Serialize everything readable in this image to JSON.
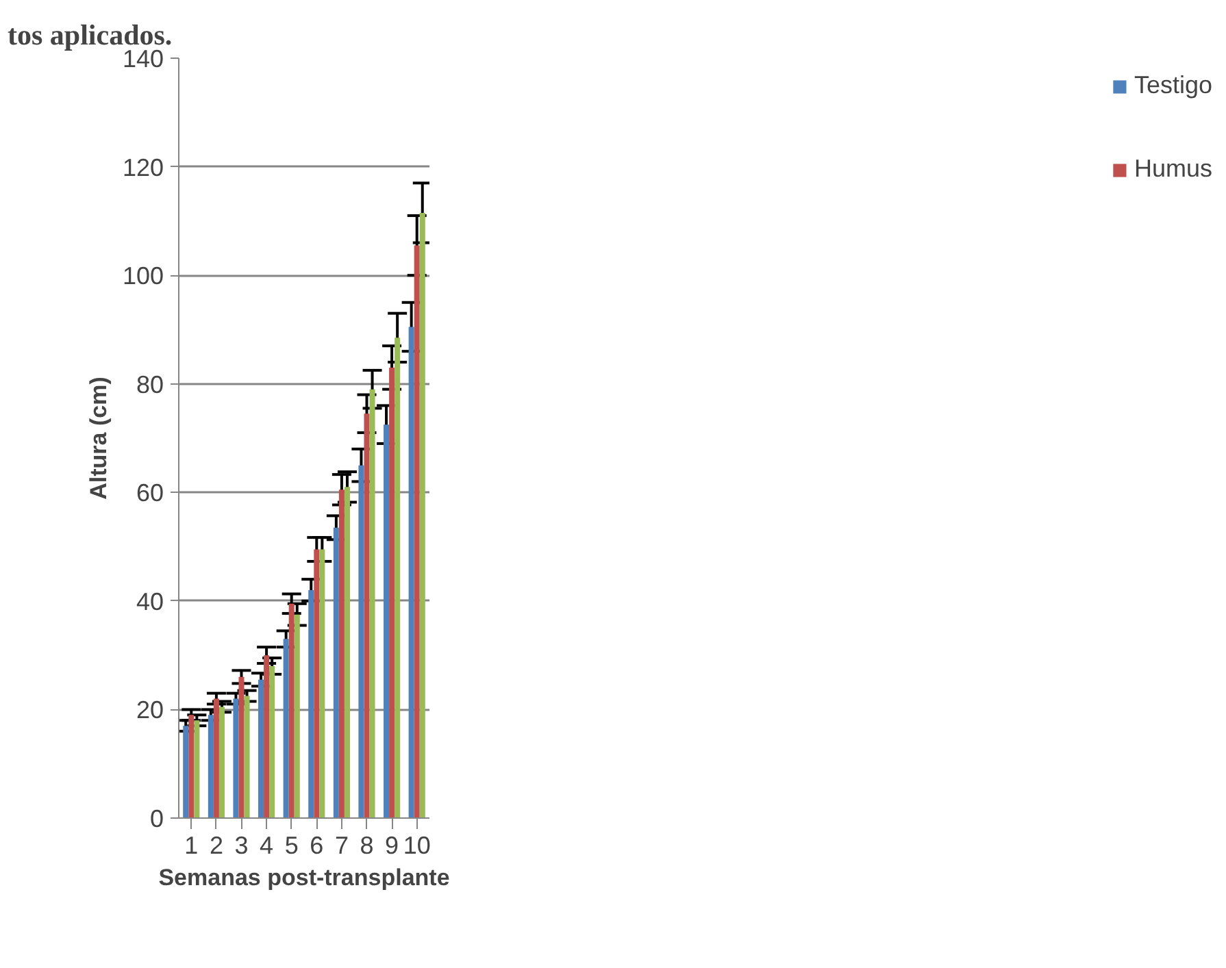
{
  "chart_data": {
    "type": "bar",
    "title": "tos aplicados.",
    "xlabel": "Semanas post-transplante",
    "ylabel": "Altura (cm)",
    "categories": [
      "1",
      "2",
      "3",
      "4",
      "5",
      "6",
      "7",
      "8",
      "9",
      "10"
    ],
    "series": [
      {
        "name": "Testigo",
        "color": "#4f81bd",
        "values": [
          17,
          19,
          22,
          25.5,
          33,
          42,
          53.5,
          65,
          72.5,
          90.5
        ],
        "errors": [
          1,
          1,
          1,
          1.2,
          1.5,
          2,
          2.2,
          3,
          3.5,
          4.5
        ]
      },
      {
        "name": "Humus",
        "color": "#c0504d",
        "values": [
          19,
          22,
          26,
          30,
          39.5,
          49.5,
          60.5,
          74.5,
          83,
          105.5
        ],
        "errors": [
          1,
          1,
          1.2,
          1.5,
          1.8,
          2.2,
          2.8,
          3.5,
          4,
          5.5
        ]
      },
      {
        "color": "#9bbb59",
        "values": [
          18,
          20.5,
          22.5,
          28,
          37.5,
          49.5,
          61,
          79,
          88.5,
          111.5
        ],
        "errors": [
          1,
          1,
          1,
          1.5,
          2,
          2.2,
          2.8,
          3.5,
          4.5,
          5.5
        ]
      }
    ],
    "ylim": [
      0,
      140
    ],
    "yticks": [
      0,
      20,
      40,
      60,
      80,
      100,
      120,
      140
    ],
    "grid": "y",
    "legend": "right"
  }
}
